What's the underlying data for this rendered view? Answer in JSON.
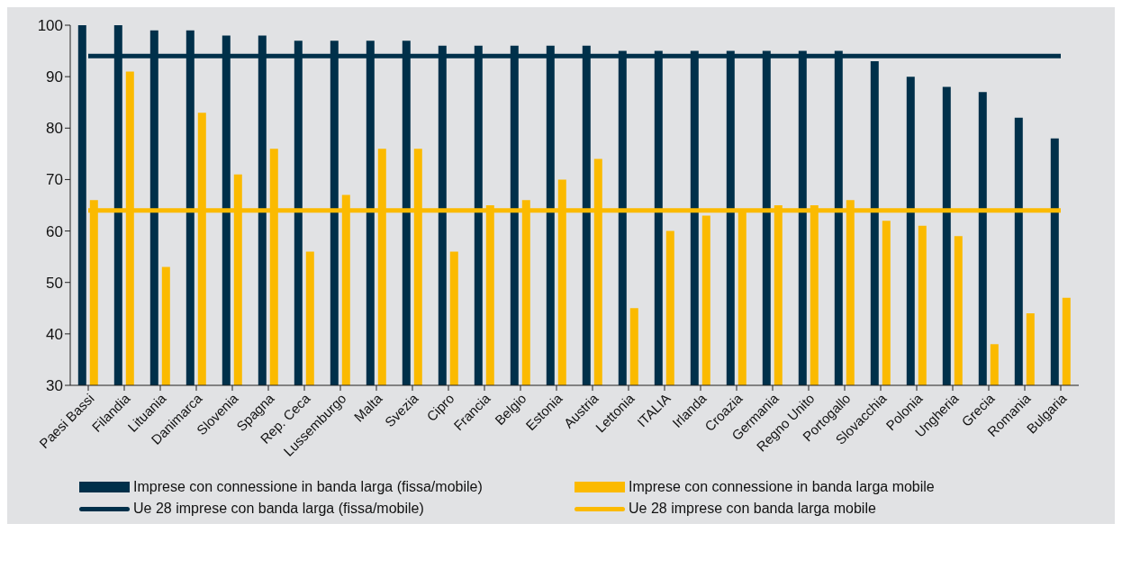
{
  "chart_data": {
    "type": "bar",
    "categories": [
      "Paesi Bassi",
      "Filandia",
      "Lituania",
      "Danimarca",
      "Slovenia",
      "Spagna",
      "Rep. Ceca",
      "Lussemburgo",
      "Malta",
      "Svezia",
      "Cipro",
      "Francia",
      "Belgio",
      "Estonia",
      "Austria",
      "Lettonia",
      "ITALIA",
      "Irlanda",
      "Croazia",
      "Germania",
      "Regno Unito",
      "Portogallo",
      "Slovacchia",
      "Polonia",
      "Ungheria",
      "Grecia",
      "Romania",
      "Bulgaria"
    ],
    "series": [
      {
        "name": "Imprese con connessione in banda larga (fissa/mobile)",
        "color": "#00304a",
        "values": [
          100,
          100,
          99,
          99,
          98,
          98,
          97,
          97,
          97,
          97,
          96,
          96,
          96,
          96,
          96,
          95,
          95,
          95,
          95,
          95,
          95,
          95,
          93,
          90,
          88,
          87,
          82,
          78
        ]
      },
      {
        "name": "Imprese con connessione in banda larga mobile",
        "color": "#fbba00",
        "values": [
          66,
          91,
          53,
          83,
          71,
          76,
          56,
          67,
          76,
          76,
          56,
          65,
          66,
          70,
          74,
          45,
          60,
          63,
          64,
          65,
          65,
          66,
          62,
          61,
          59,
          38,
          44,
          47
        ]
      },
      {
        "name": "Ue 28 imprese con banda larga (fissa/mobile)",
        "type": "line",
        "color": "#00304a",
        "values": [
          94,
          94,
          94,
          94,
          94,
          94,
          94,
          94,
          94,
          94,
          94,
          94,
          94,
          94,
          94,
          94,
          94,
          94,
          94,
          94,
          94,
          94,
          94,
          94,
          94,
          94,
          94,
          94
        ]
      },
      {
        "name": "Ue 28 imprese con banda larga mobile",
        "type": "line",
        "color": "#fbba00",
        "values": [
          64,
          64,
          64,
          64,
          64,
          64,
          64,
          64,
          64,
          64,
          64,
          64,
          64,
          64,
          64,
          64,
          64,
          64,
          64,
          64,
          64,
          64,
          64,
          64,
          64,
          64,
          64,
          64
        ]
      }
    ],
    "ylim": [
      30,
      100
    ],
    "yticks": [
      30,
      40,
      50,
      60,
      70,
      80,
      90,
      100
    ],
    "grid": false,
    "legend": "bottom",
    "marker": "none"
  }
}
